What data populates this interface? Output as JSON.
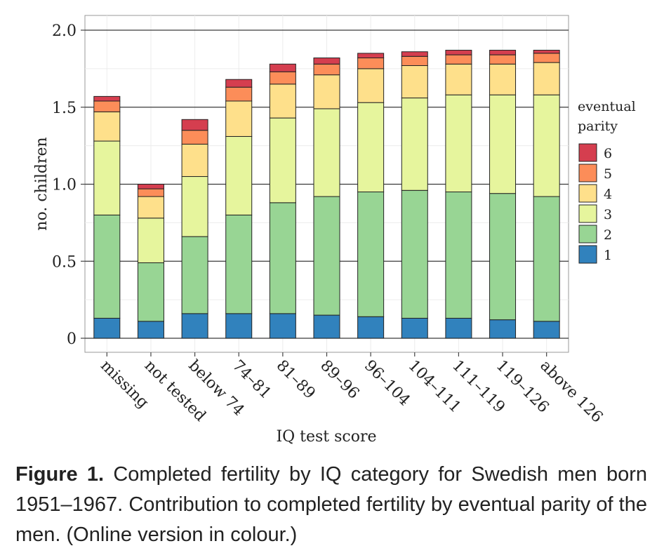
{
  "chart_data": {
    "type": "bar",
    "stacked": true,
    "xlabel": "IQ test score",
    "ylabel": "no. children",
    "ylim": [
      0,
      2.0
    ],
    "yticks": [
      0,
      0.5,
      1.0,
      1.5,
      2.0
    ],
    "ytick_labels": [
      "0",
      "0.5",
      "1.0",
      "1.5",
      "2.0"
    ],
    "categories": [
      "missing",
      "not tested",
      "below 74",
      "74–81",
      "81–89",
      "89–96",
      "96–104",
      "104–111",
      "111–119",
      "119–126",
      "above 126"
    ],
    "legend": {
      "title_line1": "eventual",
      "title_line2": "parity",
      "position": "right"
    },
    "series": [
      {
        "name": "1",
        "color": "#3182bd",
        "values": [
          0.13,
          0.11,
          0.16,
          0.16,
          0.16,
          0.15,
          0.14,
          0.13,
          0.13,
          0.12,
          0.11
        ]
      },
      {
        "name": "2",
        "color": "#98d594",
        "values": [
          0.67,
          0.38,
          0.5,
          0.64,
          0.72,
          0.77,
          0.81,
          0.83,
          0.82,
          0.82,
          0.81
        ]
      },
      {
        "name": "3",
        "color": "#e6f59d",
        "values": [
          0.48,
          0.29,
          0.39,
          0.51,
          0.55,
          0.57,
          0.58,
          0.6,
          0.63,
          0.64,
          0.66
        ]
      },
      {
        "name": "4",
        "color": "#fee08b",
        "values": [
          0.19,
          0.14,
          0.21,
          0.23,
          0.22,
          0.22,
          0.22,
          0.21,
          0.2,
          0.2,
          0.21
        ]
      },
      {
        "name": "5",
        "color": "#fc8d59",
        "values": [
          0.07,
          0.05,
          0.09,
          0.09,
          0.08,
          0.07,
          0.07,
          0.06,
          0.06,
          0.06,
          0.06
        ]
      },
      {
        "name": "6",
        "color": "#d53e4f",
        "values": [
          0.03,
          0.03,
          0.07,
          0.05,
          0.05,
          0.04,
          0.03,
          0.03,
          0.03,
          0.03,
          0.02
        ]
      }
    ]
  },
  "caption": {
    "label": "Figure 1.",
    "text": " Completed fertility by IQ category for Swedish men born 1951–1967. Contribution to completed fertility by eventual parity of the men. (Online version in colour.)"
  }
}
